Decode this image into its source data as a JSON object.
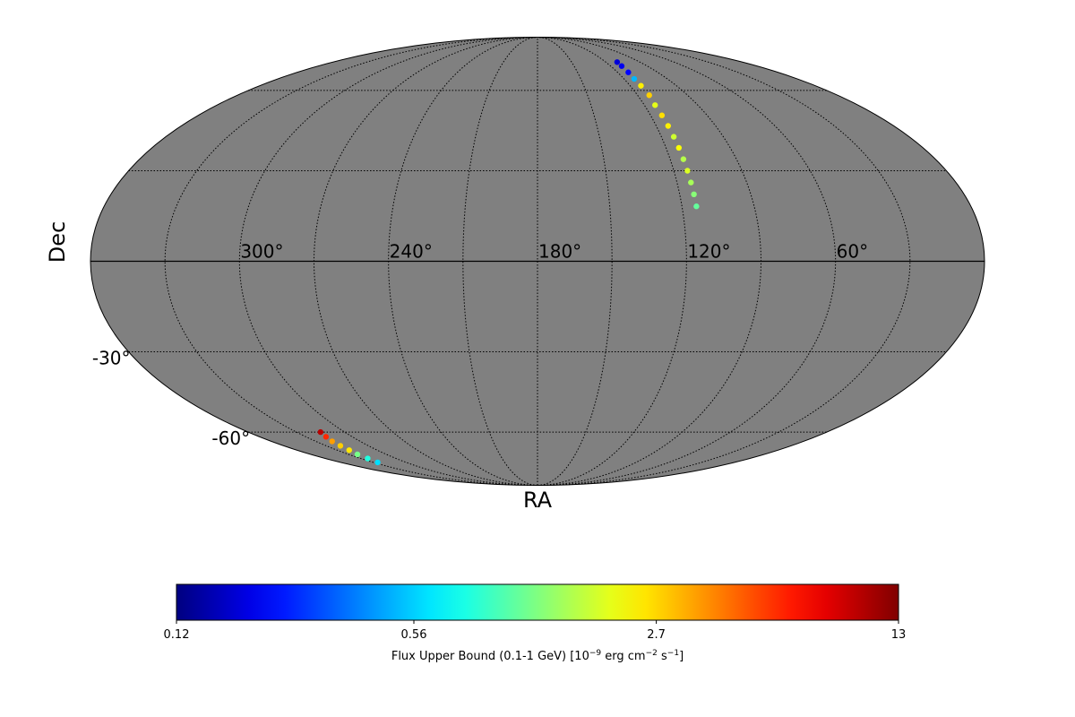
{
  "chart_data": {
    "type": "mollweide",
    "xlabel": "RA",
    "ylabel": "Dec",
    "background": "#808080",
    "graticule": 30,
    "xticks": [
      {
        "value": 300,
        "label": "300°"
      },
      {
        "value": 240,
        "label": "240°"
      },
      {
        "value": 180,
        "label": "180°"
      },
      {
        "value": 120,
        "label": "120°"
      },
      {
        "value": 60,
        "label": "60°"
      }
    ],
    "yticks": [
      {
        "value": -30,
        "label": "-30°"
      },
      {
        "value": -60,
        "label": "-60°"
      }
    ],
    "ra": [
      110,
      111,
      112,
      113,
      113,
      113,
      114,
      114,
      114,
      114,
      114,
      114,
      114,
      114,
      114,
      114,
      315,
      317,
      319,
      320,
      321,
      323,
      324,
      326
    ],
    "dec": [
      73,
      71,
      68,
      65,
      62,
      58,
      54,
      50,
      46,
      42,
      38,
      34,
      30,
      26,
      22,
      18,
      -60,
      -62,
      -64,
      -66,
      -68,
      -70,
      -72,
      -74
    ],
    "values": [
      0.18,
      0.2,
      0.22,
      0.5,
      2.4,
      2.8,
      2.0,
      2.6,
      2.4,
      1.8,
      2.2,
      1.6,
      1.9,
      1.5,
      1.3,
      1.1,
      10,
      6,
      3.5,
      2.8,
      2.5,
      1.2,
      0.8,
      0.6
    ],
    "colorbar": {
      "colormap": "jet",
      "log": true,
      "clim": [
        0.12,
        13
      ],
      "ticks": [
        0.12,
        0.56,
        2.7,
        13
      ],
      "label": [
        "Flux Upper Bound (0.1-1 GeV) [10",
        "−9",
        " erg cm",
        "−2",
        " s",
        "−1",
        "]"
      ]
    }
  }
}
